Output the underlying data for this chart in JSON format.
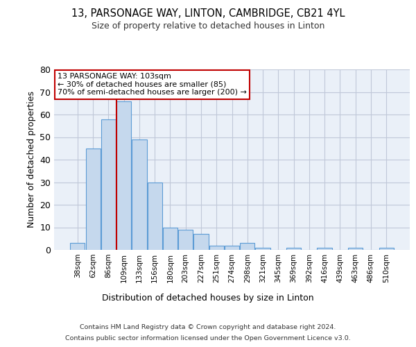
{
  "title_line1": "13, PARSONAGE WAY, LINTON, CAMBRIDGE, CB21 4YL",
  "title_line2": "Size of property relative to detached houses in Linton",
  "xlabel": "Distribution of detached houses by size in Linton",
  "ylabel": "Number of detached properties",
  "footer_line1": "Contains HM Land Registry data © Crown copyright and database right 2024.",
  "footer_line2": "Contains public sector information licensed under the Open Government Licence v3.0.",
  "bar_labels": [
    "38sqm",
    "62sqm",
    "86sqm",
    "109sqm",
    "133sqm",
    "156sqm",
    "180sqm",
    "203sqm",
    "227sqm",
    "251sqm",
    "274sqm",
    "298sqm",
    "321sqm",
    "345sqm",
    "369sqm",
    "392sqm",
    "416sqm",
    "439sqm",
    "463sqm",
    "486sqm",
    "510sqm"
  ],
  "bar_values": [
    3,
    45,
    58,
    66,
    49,
    30,
    10,
    9,
    7,
    2,
    2,
    3,
    1,
    0,
    1,
    0,
    1,
    0,
    1,
    0,
    1
  ],
  "bar_color": "#c5d8ed",
  "bar_edge_color": "#5b9bd5",
  "vline_x": 2.5,
  "vline_color": "#c00000",
  "annotation_text": "13 PARSONAGE WAY: 103sqm\n← 30% of detached houses are smaller (85)\n70% of semi-detached houses are larger (200) →",
  "annotation_box_color": "#ffffff",
  "annotation_box_edge": "#c00000",
  "ylim": [
    0,
    80
  ],
  "yticks": [
    0,
    10,
    20,
    30,
    40,
    50,
    60,
    70,
    80
  ],
  "grid_color": "#c0c8d8",
  "bg_color": "#eaf0f8"
}
